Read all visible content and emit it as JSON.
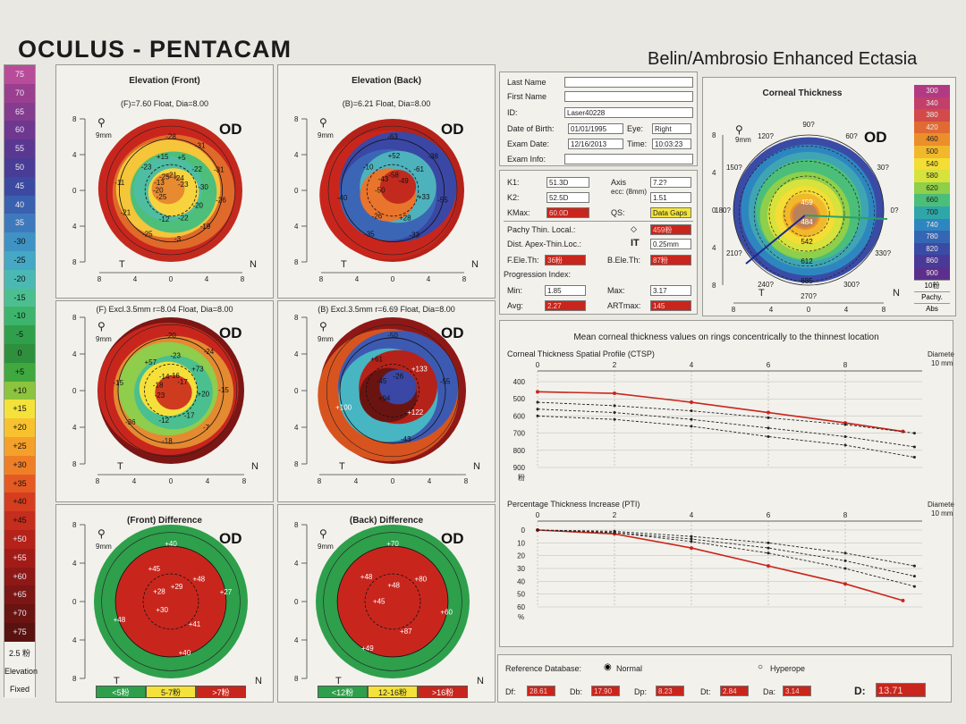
{
  "header": {
    "title": "OCULUS - PENTACAM",
    "subtitle": "Belin/Ambrosio Enhanced Ectasia"
  },
  "legend": {
    "values": [
      "75",
      "70",
      "65",
      "60",
      "55",
      "50",
      "45",
      "40",
      "35",
      "-30",
      "-25",
      "-20",
      "-15",
      "-10",
      "-5",
      "0",
      "+5",
      "+10",
      "+15",
      "+20",
      "+25",
      "+30",
      "+35",
      "+40",
      "+45",
      "+50",
      "+55",
      "+60",
      "+65",
      "+70",
      "+75"
    ],
    "colors": [
      "#b84c9a",
      "#9a3f8f",
      "#833c8e",
      "#6e3790",
      "#5a3892",
      "#483c96",
      "#3b4aa0",
      "#3a60b0",
      "#3f79bd",
      "#3e93c4",
      "#45a8c4",
      "#4bb9b3",
      "#4bbf8f",
      "#3db46b",
      "#2f9f4b",
      "#2e8f3c",
      "#3fa83f",
      "#8cc43d",
      "#f4e23a",
      "#f8c22e",
      "#f4a02a",
      "#ef7f26",
      "#e45a22",
      "#d63d1f",
      "#c52d1d",
      "#b52219",
      "#a21b17",
      "#8e1816",
      "#7b1614",
      "#6a1412",
      "#5a1210"
    ],
    "footer": [
      "2.5 粉",
      "Elevation",
      "Fixed"
    ]
  },
  "maps": [
    {
      "title": "Elevation (Front)",
      "sub": "(F)=7.60 Float, Dia=8.00",
      "od": "OD",
      "mag": "9mm",
      "t": "T",
      "n": "N",
      "axis": [
        "8",
        "4",
        "0",
        "4",
        "8"
      ],
      "yaxis": [
        "8",
        "4",
        "0",
        "4",
        "8"
      ],
      "values": [
        "-28",
        "-31",
        "-31",
        "-26",
        "-19",
        "-3",
        "-25",
        "-21",
        "-11",
        "-23",
        "+15",
        "+5",
        "-22",
        "-30",
        "-20",
        "-22",
        "-12",
        "-25",
        "-20",
        "-13",
        "-25",
        "-21",
        "-24",
        "-23"
      ]
    },
    {
      "title": "Elevation (Back)",
      "sub": "(B)=6.21 Float, Dia=8.00",
      "od": "OD",
      "mag": "9mm",
      "t": "T",
      "n": "N",
      "axis": [
        "8",
        "4",
        "0",
        "4",
        "8"
      ],
      "yaxis": [
        "8",
        "4",
        "0",
        "4",
        "8"
      ],
      "values": [
        "-63",
        "-38",
        "-55",
        "-33",
        "-35",
        "-40",
        "-10",
        "+52",
        "-61",
        "+33",
        "+28",
        "-26",
        "-50",
        "-43",
        "-58",
        "-49"
      ]
    },
    {
      "title": "",
      "sub": "(F) Excl.3.5mm  r=8.04 Float, Dia=8.00",
      "od": "OD",
      "mag": "9mm",
      "t": "T",
      "n": "N",
      "axis": [
        "8",
        "4",
        "0",
        "4",
        "8"
      ],
      "yaxis": [
        "8",
        "4",
        "0",
        "4",
        "8"
      ],
      "values": [
        "-20",
        "-24",
        "-15",
        "-7",
        "-18",
        "-36",
        "-15",
        "+57",
        "-23",
        "+73",
        "+20",
        "-17",
        "-12",
        "-23",
        "-18",
        "-14",
        "-16",
        "-17"
      ]
    },
    {
      "title": "",
      "sub": "(B) Excl.3.5mm  r=6.69 Float, Dia=8.00",
      "od": "OD",
      "mag": "9mm",
      "t": "T",
      "n": "N",
      "axis": [
        "8",
        "4",
        "0",
        "4",
        "8"
      ],
      "yaxis": [
        "8",
        "4",
        "0",
        "4",
        "8"
      ],
      "values": [
        "-50",
        "-55",
        "-43",
        "+100",
        "+61",
        "+133",
        "+122",
        "+94",
        "-45",
        "-26"
      ]
    },
    {
      "title": "(Front) Difference",
      "sub": "",
      "od": "OD",
      "mag": "9mm",
      "t": "T",
      "n": "N",
      "axis": [],
      "yaxis": [
        "8",
        "4",
        "0",
        "4",
        "8"
      ],
      "values": [
        "+40",
        "+27",
        "+40",
        "+48",
        "+45",
        "+48",
        "+41",
        "+30",
        "+28",
        "+29"
      ],
      "scale": [
        "<5粉",
        "5-7粉",
        ">7粉"
      ]
    },
    {
      "title": "(Back) Difference",
      "sub": "",
      "od": "OD",
      "mag": "9mm",
      "t": "T",
      "n": "N",
      "axis": [],
      "yaxis": [
        "8",
        "4",
        "0",
        "4",
        "8"
      ],
      "values": [
        "+70",
        "+60",
        "+49",
        "+48",
        "+80",
        "+87",
        "+45",
        "+48"
      ],
      "scale": [
        "<12粉",
        "12-16粉",
        ">16粉"
      ]
    }
  ],
  "patient": {
    "last_name_label": "Last Name",
    "first_name_label": "First Name",
    "id_label": "ID:",
    "id": "Laser40228",
    "dob_label": "Date of Birth:",
    "dob": "01/01/1995",
    "eye_label": "Eye:",
    "eye": "Right",
    "exam_date_label": "Exam Date:",
    "exam_date": "12/16/2013",
    "time_label": "Time:",
    "time": "10:03:23",
    "exam_info_label": "Exam Info:"
  },
  "keratometry": {
    "k1_label": "K1:",
    "k1": "51.3D",
    "k2_label": "K2:",
    "k2": "52.5D",
    "kmax_label": "KMax:",
    "kmax": "60.0D",
    "axis_label": "Axis",
    "axis": "7.2?",
    "ecc_label": "ecc: (8mm)",
    "ecc": "1.51",
    "qs_label": "QS:",
    "qs": "Data Gaps",
    "pachy_thin_label": "Pachy Thin. Local.:",
    "pachy_thin": "459粉",
    "dist_label": "Dist. Apex-Thin.Loc.:",
    "dist_code": "IT",
    "dist": "0.25mm",
    "fele_label": "F.Ele.Th:",
    "fele": "36粉",
    "bele_label": "B.Ele.Th:",
    "bele": "87粉",
    "prog_label": "Progression Index:",
    "min_label": "Min:",
    "min": "1.85",
    "max_label": "Max:",
    "max": "3.17",
    "avg_label": "Avg:",
    "avg": "2.27",
    "artmax_label": "ARTmax:",
    "artmax": "145"
  },
  "thickness_map": {
    "title": "Corneal Thickness",
    "od": "OD",
    "mag": "9mm",
    "t": "T",
    "n": "N",
    "angles": [
      "90?",
      "60?",
      "30?",
      "0?",
      "330?",
      "300?",
      "270?",
      "240?",
      "210?",
      "180?",
      "150?",
      "120?"
    ],
    "values": [
      "459",
      "484",
      "542",
      "612",
      "685"
    ],
    "axis": [
      "8",
      "4",
      "0",
      "4",
      "8"
    ],
    "yaxis": [
      "8",
      "4",
      "0",
      "4",
      "8"
    ],
    "scale": [
      "300",
      "340",
      "380",
      "420",
      "460",
      "500",
      "540",
      "580",
      "620",
      "660",
      "700",
      "740",
      "780",
      "820",
      "860",
      "900"
    ],
    "scale_colors": [
      "#b23a83",
      "#c23f6a",
      "#d24a4a",
      "#e06a32",
      "#eb8f2b",
      "#f2b82c",
      "#f4dd35",
      "#d7e23c",
      "#8fcf4a",
      "#4bbf7a",
      "#2fa7a8",
      "#2e86c0",
      "#3566b4",
      "#3a4ba6",
      "#4a3a98",
      "#5c2f8d"
    ],
    "footer": [
      "10粉",
      "Pachy.",
      "Abs"
    ]
  },
  "graphs": {
    "header": "Mean corneal thickness values on rings concentrically to the thinnest location",
    "ctsp": {
      "title": "Corneal Thickness Spatial Profile (CTSP)",
      "xlabel": "Diameter",
      "xunit": "10 mm",
      "xticks": [
        "0",
        "2",
        "4",
        "6",
        "8"
      ],
      "yticks": [
        "400",
        "500",
        "600",
        "700",
        "800",
        "900"
      ],
      "yunit": "粉"
    },
    "pti": {
      "title": "Percentage Thickness Increase (PTI)",
      "xlabel": "Diameter",
      "xunit": "10 mm",
      "xticks": [
        "0",
        "2",
        "4",
        "6",
        "8"
      ],
      "yticks": [
        "0",
        "10",
        "20",
        "30",
        "40",
        "50",
        "60"
      ],
      "yunit": "%"
    }
  },
  "chart_data": [
    {
      "type": "line",
      "title": "Corneal Thickness Spatial Profile (CTSP)",
      "xlabel": "Diameter",
      "ylabel": "",
      "xlim": [
        0,
        10
      ],
      "ylim": [
        400,
        900
      ],
      "series": [
        {
          "color": "#c8261d",
          "x": [
            0,
            2,
            4,
            6,
            8,
            9.5
          ],
          "values": [
            459,
            468,
            520,
            580,
            640,
            690
          ]
        },
        {
          "color": "#222222",
          "x": [
            0,
            2,
            4,
            6,
            8,
            9.8
          ],
          "values": [
            520,
            540,
            570,
            610,
            650,
            700
          ]
        },
        {
          "color": "#222222",
          "x": [
            0,
            2,
            4,
            6,
            8,
            9.8
          ],
          "values": [
            560,
            580,
            620,
            670,
            720,
            780
          ]
        },
        {
          "color": "#222222",
          "x": [
            0,
            2,
            4,
            6,
            8,
            9.8
          ],
          "values": [
            600,
            620,
            660,
            720,
            770,
            840
          ]
        }
      ]
    },
    {
      "type": "line",
      "title": "Percentage Thickness Increase (PTI)",
      "xlabel": "Diameter",
      "ylabel": "",
      "xlim": [
        0,
        10
      ],
      "ylim": [
        0,
        60
      ],
      "series": [
        {
          "color": "#c8261d",
          "x": [
            0,
            2,
            4,
            6,
            8,
            9.5
          ],
          "values": [
            0,
            3,
            14,
            28,
            42,
            55
          ]
        },
        {
          "color": "#222222",
          "x": [
            0,
            2,
            4,
            6,
            8,
            9.8
          ],
          "values": [
            0,
            1,
            5,
            10,
            18,
            28
          ]
        },
        {
          "color": "#222222",
          "x": [
            0,
            2,
            4,
            6,
            8,
            9.8
          ],
          "values": [
            0,
            2,
            7,
            14,
            24,
            36
          ]
        },
        {
          "color": "#222222",
          "x": [
            0,
            2,
            4,
            6,
            8,
            9.8
          ],
          "values": [
            0,
            2,
            9,
            18,
            30,
            44
          ]
        }
      ]
    }
  ],
  "reference": {
    "label": "Reference Database:",
    "normal": "Normal",
    "hyperope": "Hyperope",
    "df_label": "Df:",
    "df": "28.61",
    "db_label": "Db:",
    "db": "17.90",
    "dp_label": "Dp:",
    "dp": "8.23",
    "dt_label": "Dt:",
    "dt": "2.84",
    "da_label": "Da:",
    "da": "3.14",
    "d_label": "D:",
    "d": "13.71"
  }
}
